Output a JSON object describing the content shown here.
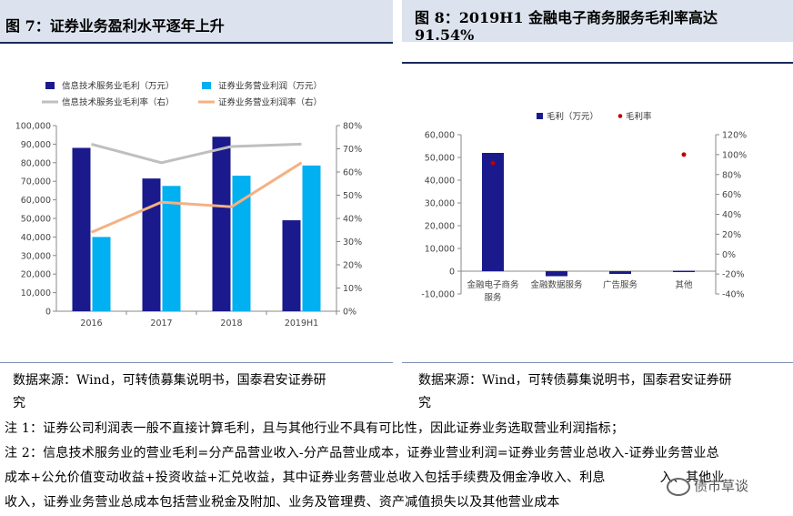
{
  "figures": {
    "left_title": "图 7：证券业务盈利水平逐年上升",
    "right_title_line1": "图 8：2019H1 金融电子商务服务毛利率高达",
    "right_title_line2": "91.54%"
  },
  "sources": {
    "left_line1": "数据来源：Wind，可转债募集说明书，国泰君安证券研",
    "left_line2": "究",
    "right_line1": "数据来源：Wind，可转债募集说明书，国泰君安证券研",
    "right_line2": "究"
  },
  "notes": {
    "line1": "注 1：证券公司利润表一般不直接计算毛利，且与其他行业不具有可比性，因此证券业务选取营业利润指标；",
    "line2": "注 2：信息技术服务业的营业毛利=分产品营业收入-分产品营业成本，证券业营业利润=证券业务营业总收入-证券业务营业总",
    "line3": "成本+公允价值变动收益+投资收益+汇兑收益，其中证券业务营业总收入包括手续费及佣金净收入、利息",
    "line3b": "入、其他业",
    "line4": "收入，证券业务营业总成本包括营业税金及附加、业务及管理费、资产减值损失以及其他营业成本"
  },
  "watermark": "债市草谈",
  "colors": {
    "navy": "#1a1a8c",
    "cyan": "#00b0f0",
    "gray": "#bfbfbf",
    "peach": "#f4b183",
    "red": "#c00000",
    "header_bg": "#dde3ee"
  },
  "chart_data": [
    {
      "type": "bar",
      "categories": [
        "2016",
        "2017",
        "2018",
        "2019H1"
      ],
      "series": [
        {
          "name": "信息技术服务业毛利（万元）",
          "kind": "bar",
          "axis": "left",
          "values": [
            88000,
            71500,
            94000,
            49000
          ]
        },
        {
          "name": "证券业务营业利润（万元）",
          "kind": "bar",
          "axis": "left",
          "values": [
            40000,
            67500,
            73000,
            78500
          ]
        },
        {
          "name": "信息技术服务业毛利率（右）",
          "kind": "line",
          "axis": "right",
          "values": [
            0.72,
            0.64,
            0.71,
            0.72
          ]
        },
        {
          "name": "证券业务营业利润率（右）",
          "kind": "line",
          "axis": "right",
          "values": [
            0.34,
            0.47,
            0.45,
            0.64
          ]
        }
      ],
      "yleft_ticks": [
        "0",
        "10,000",
        "20,000",
        "30,000",
        "40,000",
        "50,000",
        "60,000",
        "70,000",
        "80,000",
        "90,000",
        "100,000"
      ],
      "yright_ticks": [
        "0%",
        "10%",
        "20%",
        "30%",
        "40%",
        "50%",
        "60%",
        "70%",
        "80%"
      ],
      "ylim_left": [
        0,
        100000
      ],
      "ylim_right": [
        0,
        0.8
      ],
      "legend": "top"
    },
    {
      "type": "bar",
      "categories": [
        "金融电子商务服务",
        "金融数据服务",
        "广告服务",
        "其他"
      ],
      "series": [
        {
          "name": "毛利（万元）",
          "kind": "bar",
          "axis": "left",
          "values": [
            52000,
            -2200,
            -1200,
            200
          ]
        },
        {
          "name": "毛利率",
          "kind": "scatter",
          "axis": "right",
          "values": [
            0.9154,
            null,
            null,
            1.0
          ]
        }
      ],
      "yleft_ticks": [
        "-10,000",
        "0",
        "10,000",
        "20,000",
        "30,000",
        "40,000",
        "50,000",
        "60,000"
      ],
      "yright_ticks": [
        "-40%",
        "-20%",
        "0%",
        "20%",
        "40%",
        "60%",
        "80%",
        "100%",
        "120%"
      ],
      "ylim_left": [
        -10000,
        60000
      ],
      "ylim_right": [
        -0.4,
        1.2
      ],
      "legend": "top"
    }
  ]
}
